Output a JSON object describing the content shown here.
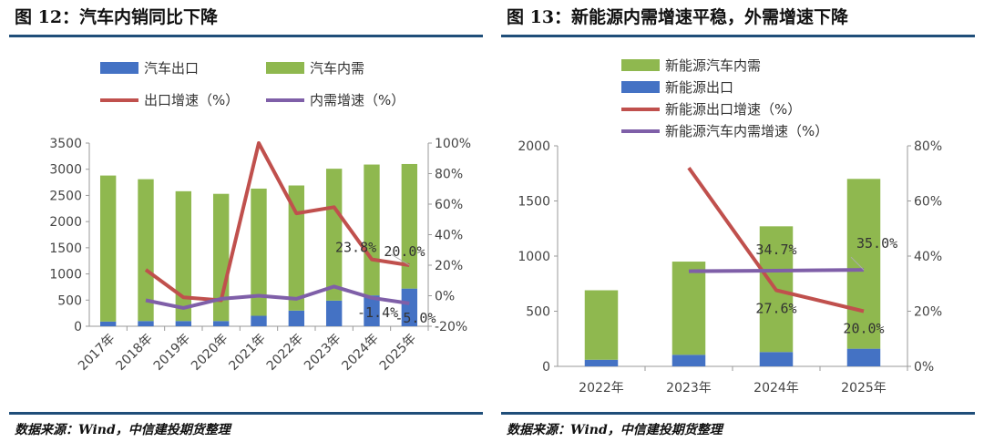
{
  "left": {
    "title": "图 12：汽车内销同比下降",
    "source": "数据来源：Wind，中信建投期货整理",
    "chart_data": {
      "type": "bar",
      "categories": [
        "2017年",
        "2018年",
        "2019年",
        "2020年",
        "2021年",
        "2022年",
        "2023年",
        "2024年",
        "2025年"
      ],
      "stacked": true,
      "bars": [
        {
          "name": "汽车出口",
          "color": "#4472c4",
          "values": [
            90,
            100,
            100,
            100,
            200,
            300,
            490,
            590,
            720
          ]
        },
        {
          "name": "汽车内需",
          "color": "#8fb84f",
          "values": [
            2790,
            2710,
            2480,
            2430,
            2430,
            2390,
            2520,
            2500,
            2380
          ]
        }
      ],
      "lines": [
        {
          "name": "出口增速（%）",
          "color": "#c0504d",
          "values": [
            null,
            17,
            -1,
            -3,
            100,
            54,
            58,
            23.8,
            20.0
          ]
        },
        {
          "name": "内需增速（%）",
          "color": "#7f5fa8",
          "values": [
            null,
            -3,
            -8,
            -2,
            0,
            -2,
            6,
            -1.4,
            -5.0
          ]
        }
      ],
      "ylim": [
        0,
        3500
      ],
      "yticks": [
        "0",
        "500",
        "1000",
        "1500",
        "2000",
        "2500",
        "3000",
        "3500"
      ],
      "y2lim": [
        -20,
        100
      ],
      "y2ticks": [
        "-20%",
        "0%",
        "20%",
        "40%",
        "60%",
        "80%",
        "100%"
      ],
      "annotations": [
        {
          "text": "23.8%",
          "series": 0,
          "index": 7
        },
        {
          "text": "20.0%",
          "series": 0,
          "index": 8
        },
        {
          "text": "-1.4%",
          "series": 1,
          "index": 7
        },
        {
          "text": "-5.0%",
          "series": 1,
          "index": 8
        }
      ],
      "legend_position": "top"
    }
  },
  "right": {
    "title": "图 13：新能源内需增速平稳，外需增速下降",
    "source": "数据来源：Wind，中信建投期货整理",
    "chart_data": {
      "type": "bar",
      "categories": [
        "2022年",
        "2023年",
        "2024年",
        "2025年"
      ],
      "stacked": true,
      "bars": [
        {
          "name": "新能源出口",
          "color": "#4472c4",
          "values": [
            60,
            105,
            130,
            160
          ]
        },
        {
          "name": "新能源汽车内需",
          "color": "#8fb84f",
          "values": [
            630,
            845,
            1140,
            1540
          ]
        }
      ],
      "lines": [
        {
          "name": "新能源出口增速（%）",
          "color": "#c0504d",
          "values": [
            null,
            72,
            27.6,
            20.0
          ]
        },
        {
          "name": "新能源汽车内需增速（%）",
          "color": "#7f5fa8",
          "values": [
            null,
            34.5,
            34.7,
            35.0
          ]
        }
      ],
      "ylim": [
        0,
        2000
      ],
      "yticks": [
        "0",
        "500",
        "1000",
        "1500",
        "2000"
      ],
      "y2lim": [
        0,
        80
      ],
      "y2ticks": [
        "0%",
        "20%",
        "40%",
        "60%",
        "80%"
      ],
      "annotations": [
        {
          "text": "34.7%",
          "series": 1,
          "index": 2
        },
        {
          "text": "35.0%",
          "series": 1,
          "index": 3
        },
        {
          "text": "27.6%",
          "series": 0,
          "index": 2
        },
        {
          "text": "20.0%",
          "series": 0,
          "index": 3
        }
      ],
      "legend_position": "top"
    }
  }
}
